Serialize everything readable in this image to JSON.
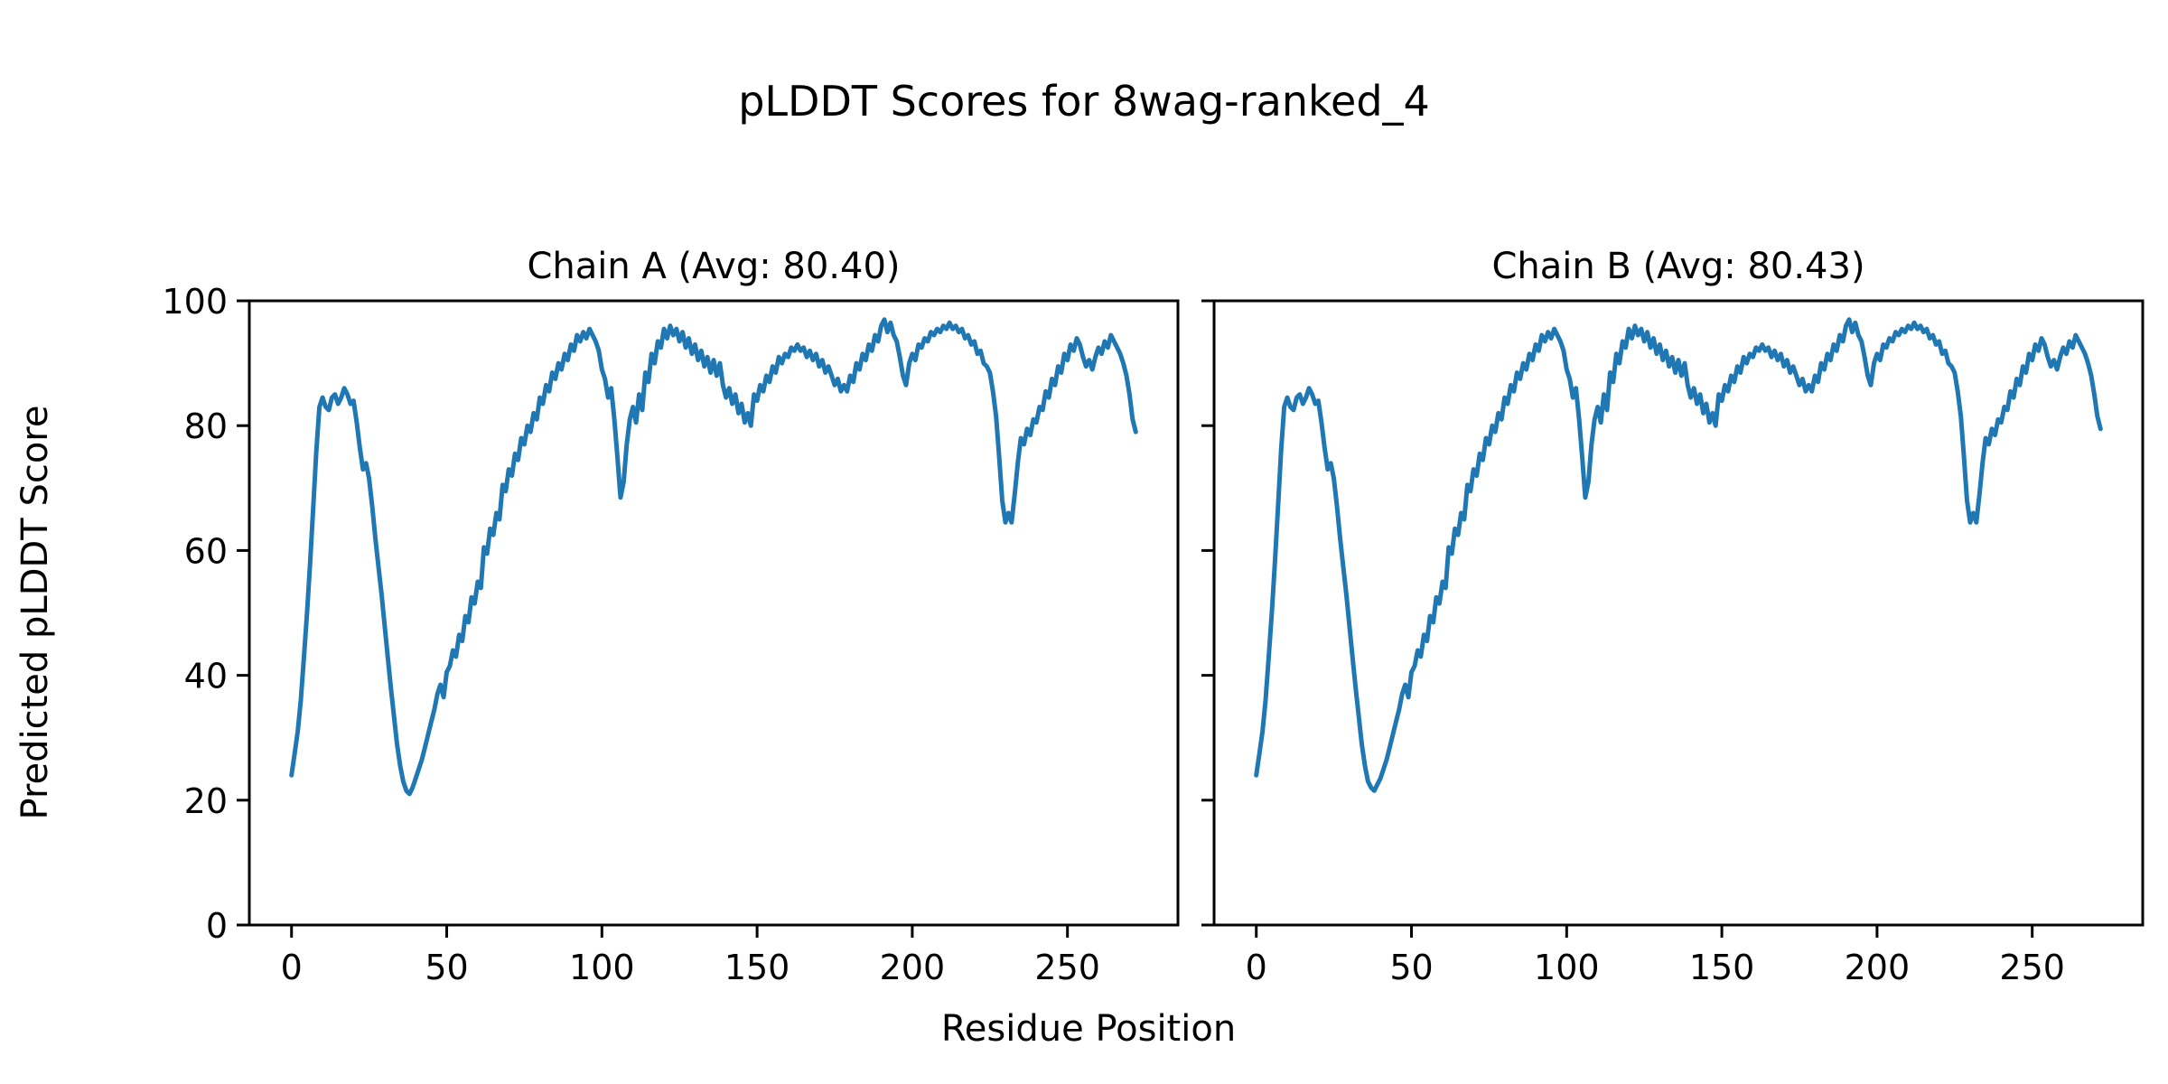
{
  "figure": {
    "suptitle": "pLDDT Scores for 8wag-ranked_4",
    "xlabel": "Residue Position",
    "ylabel": "Predicted pLDDT Score",
    "background_color": "#ffffff",
    "line_color": "#1f77b4",
    "spine_color": "#000000"
  },
  "chart_data": [
    {
      "type": "line",
      "title": "Chain A (Avg: 80.40)",
      "avg_label_value": 80.4,
      "x_start": 0,
      "x_step": 1,
      "xlim": [
        -13.6,
        285.6
      ],
      "ylim": [
        0,
        100
      ],
      "xticks": [
        0,
        50,
        100,
        150,
        200,
        250
      ],
      "yticks": [
        0,
        20,
        40,
        60,
        80,
        100
      ],
      "show_y_tick_labels": true,
      "grid": false,
      "legend": "none",
      "series": [
        {
          "name": "Chain A pLDDT",
          "color": "#1f77b4",
          "values": [
            24,
            27.5,
            31,
            36,
            43,
            50,
            58,
            67,
            76,
            83,
            84.5,
            83,
            82.5,
            84.5,
            85,
            83.5,
            84.5,
            86,
            85,
            83.5,
            84,
            80.5,
            76.5,
            73,
            74,
            71.5,
            67,
            62,
            57.5,
            53,
            48,
            43,
            38,
            33.5,
            29,
            25.5,
            23,
            21.5,
            21,
            22,
            23.5,
            25,
            26.5,
            28.5,
            30.5,
            32.5,
            34.5,
            37,
            38.5,
            36.5,
            40.5,
            41.5,
            44,
            43,
            46.5,
            45.5,
            49.5,
            48.5,
            52.5,
            51.5,
            55,
            54,
            60.5,
            59.5,
            63.5,
            62.5,
            66,
            65,
            70.5,
            69.5,
            73,
            72,
            75.5,
            74.5,
            78,
            77,
            80,
            79,
            82,
            81,
            84.5,
            83.5,
            86.5,
            85.5,
            88.5,
            87.5,
            90,
            89,
            91.5,
            90.5,
            93,
            92,
            94.5,
            93.5,
            95,
            94,
            95.5,
            94.5,
            93.5,
            92,
            89,
            87.5,
            84.5,
            86,
            81,
            75,
            68.5,
            71,
            77,
            81,
            83,
            80.5,
            85,
            82.5,
            88.5,
            87,
            91.5,
            90,
            93.5,
            92.5,
            95.5,
            94,
            96,
            94.5,
            95.5,
            93.5,
            95,
            92.5,
            94,
            91.5,
            93,
            90.5,
            92,
            89.5,
            91,
            88.5,
            90.5,
            88,
            90,
            86.5,
            84.5,
            86,
            83.5,
            85,
            82,
            83.5,
            80.5,
            82,
            80,
            85,
            84,
            86.5,
            85.5,
            88,
            87,
            89.5,
            88.5,
            91,
            90,
            91.5,
            91,
            92.5,
            92,
            93,
            92,
            92.5,
            91,
            92,
            90.5,
            91.5,
            89.5,
            90.5,
            88.5,
            89.5,
            88,
            86.5,
            87.5,
            85.5,
            86.5,
            85.5,
            88,
            87,
            90,
            89,
            91.5,
            90.5,
            93,
            92,
            94.5,
            93.5,
            96,
            97,
            95,
            96.5,
            94.5,
            93.5,
            91,
            88,
            86.5,
            90,
            91.5,
            90.5,
            93,
            92.5,
            94,
            93.5,
            95,
            94.5,
            95.5,
            95,
            96,
            95.5,
            96.5,
            95.5,
            96,
            95,
            95.5,
            94,
            94.5,
            93,
            93.5,
            91.5,
            92,
            90,
            89.5,
            88.5,
            85.5,
            81.5,
            75,
            68,
            64.5,
            66,
            64.5,
            69,
            74,
            78,
            77,
            79.5,
            78.5,
            81,
            80.5,
            83,
            82.5,
            85.5,
            84.5,
            87.5,
            86.5,
            89.5,
            88.5,
            91.5,
            90.5,
            93,
            92,
            94,
            93,
            91,
            89.5,
            90.5,
            89,
            91,
            92.5,
            91.5,
            93.5,
            92.5,
            94.5,
            93.5,
            92.5,
            91.5,
            90,
            88,
            85,
            81,
            79
          ]
        }
      ]
    },
    {
      "type": "line",
      "title": "Chain B (Avg: 80.43)",
      "avg_label_value": 80.43,
      "x_start": 0,
      "x_step": 1,
      "xlim": [
        -13.6,
        285.6
      ],
      "ylim": [
        0,
        100
      ],
      "xticks": [
        0,
        50,
        100,
        150,
        200,
        250
      ],
      "yticks": [
        0,
        20,
        40,
        60,
        80,
        100
      ],
      "show_y_tick_labels": false,
      "grid": false,
      "legend": "none",
      "series": [
        {
          "name": "Chain B pLDDT",
          "color": "#1f77b4",
          "values": [
            24,
            27.5,
            31,
            36,
            43,
            50,
            58,
            67,
            76,
            83,
            84.5,
            83,
            82.5,
            84.5,
            85,
            83.5,
            84.5,
            86,
            85,
            83.5,
            84,
            80.5,
            76.5,
            73,
            74,
            71.5,
            67,
            62,
            57.5,
            53,
            48,
            43,
            38,
            33.5,
            29,
            25.5,
            23,
            22,
            21.5,
            22.5,
            23.5,
            25,
            26.5,
            28.5,
            30.5,
            32.5,
            34.5,
            37,
            38.5,
            36.5,
            40.5,
            41.5,
            44,
            43,
            46.5,
            45.5,
            49.5,
            48.5,
            52.5,
            51.5,
            55,
            54,
            60.5,
            59.5,
            63.5,
            62.5,
            66,
            65,
            70.5,
            69.5,
            73,
            72,
            75.5,
            74.5,
            78,
            77,
            80,
            79,
            82,
            81,
            84.5,
            83.5,
            86.5,
            85.5,
            88.5,
            87.5,
            90,
            89,
            91.5,
            90.5,
            93,
            92,
            94.5,
            93.5,
            95,
            94,
            95.5,
            94.5,
            93.5,
            92,
            89,
            87.5,
            84.5,
            86,
            81,
            75,
            68.5,
            71,
            77,
            81,
            83,
            80.5,
            85,
            82.5,
            88.5,
            87,
            91.5,
            90,
            93.5,
            92.5,
            95.5,
            94,
            96,
            94.5,
            95.5,
            93.5,
            95,
            92.5,
            94,
            91.5,
            93,
            90.5,
            92,
            89.5,
            91,
            88.5,
            90.5,
            88,
            90,
            86.5,
            84.5,
            86,
            83.5,
            85,
            82,
            83.5,
            80.5,
            82,
            80,
            85,
            84,
            86.5,
            85.5,
            88,
            87,
            89.5,
            88.5,
            91,
            90,
            91.5,
            91,
            92.5,
            92,
            93,
            92,
            92.5,
            91,
            92,
            90.5,
            91.5,
            89.5,
            90.5,
            88.5,
            89.5,
            88,
            86.5,
            87.5,
            85.5,
            86.5,
            85.5,
            88,
            87,
            90,
            89,
            91.5,
            90.5,
            93,
            92,
            94.5,
            93.5,
            96,
            97,
            95,
            96.5,
            94.5,
            93.5,
            91,
            88,
            86.5,
            90,
            91.5,
            90.5,
            93,
            92.5,
            94,
            93.5,
            95,
            94.5,
            95.5,
            95,
            96,
            95.5,
            96.5,
            95.5,
            96,
            95,
            95.5,
            94,
            94.5,
            93,
            93.5,
            91.5,
            92,
            90,
            89.5,
            88.5,
            85.5,
            81.5,
            75,
            68,
            64.5,
            66,
            64.5,
            69,
            74,
            78,
            77,
            79.5,
            78.5,
            81,
            80.5,
            83,
            82.5,
            85.5,
            84.5,
            87.5,
            86.5,
            89.5,
            88.5,
            91.5,
            90.5,
            93,
            92,
            94,
            93,
            91,
            89.5,
            90.5,
            89,
            91,
            92.5,
            91.5,
            93.5,
            92.5,
            94.5,
            93.5,
            92.5,
            91.5,
            90,
            88,
            85,
            81.5,
            79.5
          ]
        }
      ]
    }
  ]
}
